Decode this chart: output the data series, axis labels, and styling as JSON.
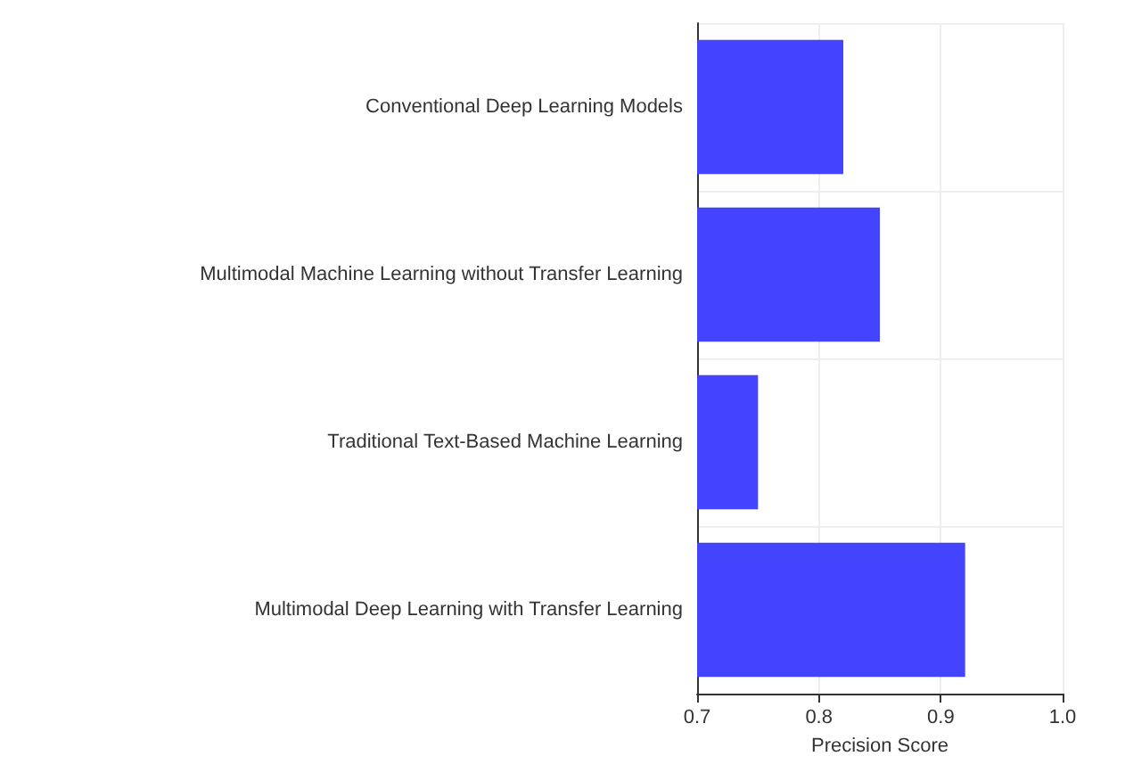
{
  "chart_data": {
    "type": "bar",
    "orientation": "horizontal",
    "xlabel": "Precision Score",
    "categories": [
      "Conventional Deep Learning Models",
      "Multimodal Machine Learning without Transfer Learning",
      "Traditional Text-Based Machine Learning",
      "Multimodal Deep Learning with Transfer Learning"
    ],
    "values": [
      0.82,
      0.85,
      0.75,
      0.92
    ],
    "color": "#4444ff",
    "xlim": [
      0.7,
      1.0
    ],
    "xticks": [
      0.7,
      0.8,
      0.9,
      {
        "value": 1,
        "label": "1.0"
      }
    ],
    "grid": true
  }
}
